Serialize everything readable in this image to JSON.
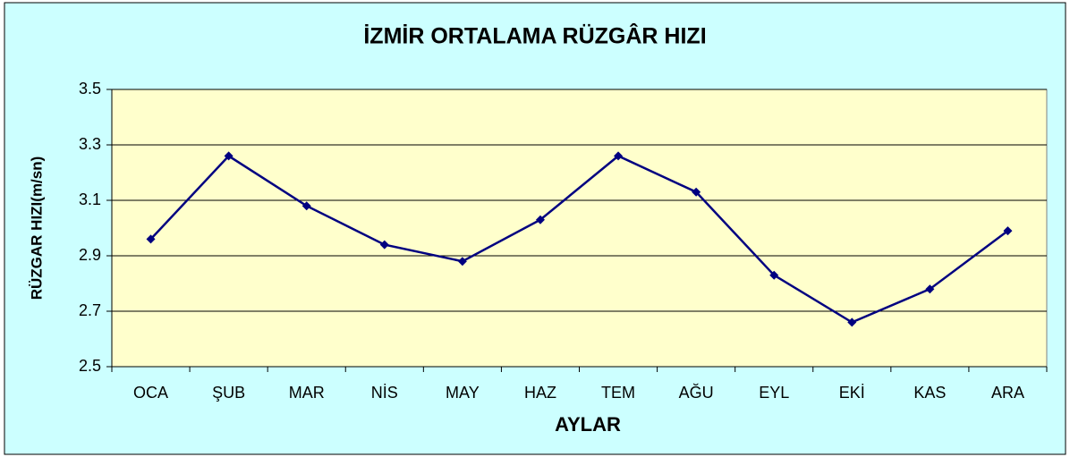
{
  "chart_data": {
    "type": "line",
    "title": "İZMİR ORTALAMA RÜZGÂR HIZI",
    "x_label": "AYLAR",
    "y_label": "RÜZGAR HIZI(m/sn)",
    "categories": [
      "OCA",
      "ŞUB",
      "MAR",
      "NİS",
      "MAY",
      "HAZ",
      "TEM",
      "AĞU",
      "EYL",
      "EKİ",
      "KAS",
      "ARA"
    ],
    "series": [
      {
        "name": "RÜZGAR HIZI",
        "color": "#000080",
        "values": [
          2.96,
          3.26,
          3.08,
          2.94,
          2.88,
          3.03,
          3.26,
          3.13,
          2.83,
          2.66,
          2.78,
          2.99
        ]
      }
    ],
    "ylim": [
      2.5,
      3.5
    ],
    "yticks": [
      2.5,
      2.7,
      2.9,
      3.1,
      3.3,
      3.5
    ],
    "grid": true
  }
}
